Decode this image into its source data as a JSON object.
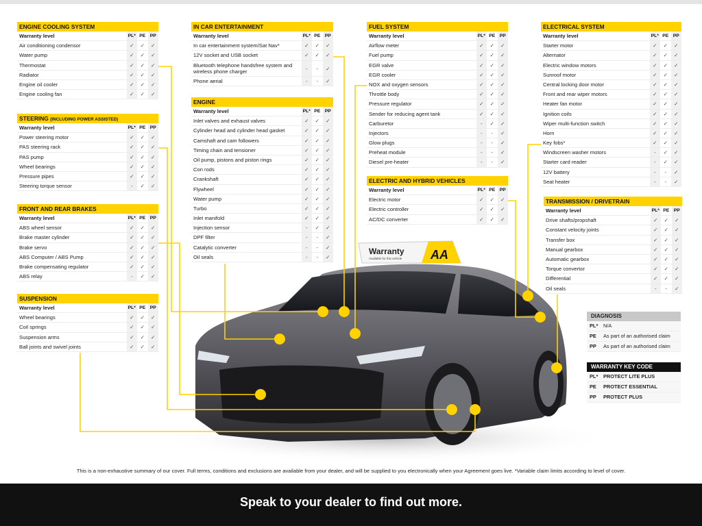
{
  "colors": {
    "accent": "#ffd200",
    "band": "#111111",
    "diagnosis_header": "#c8c8c8",
    "keycode_header": "#111111"
  },
  "columns": {
    "label": "Warranty level",
    "pl": "PL*",
    "pe": "PE",
    "pp": "PP"
  },
  "tables": [
    {
      "title": "ENGINE COOLING SYSTEM",
      "rows": [
        [
          "Air conditioning condensor",
          "✓",
          "✓",
          "✓"
        ],
        [
          "Water pump",
          "✓",
          "✓",
          "✓"
        ],
        [
          "Thermostat",
          "✓",
          "✓",
          "✓"
        ],
        [
          "Radiator",
          "✓",
          "✓",
          "✓"
        ],
        [
          "Engine oil cooler",
          "✓",
          "✓",
          "✓"
        ],
        [
          "Engine cooling fan",
          "✓",
          "✓",
          "✓"
        ]
      ]
    },
    {
      "title": "STEERING",
      "title_sub": "(INCLUDING POWER ASSISTED)",
      "rows": [
        [
          "Power steering motor",
          "✓",
          "✓",
          "✓"
        ],
        [
          "PAS steering rack",
          "✓",
          "✓",
          "✓"
        ],
        [
          "PAS pump",
          "✓",
          "✓",
          "✓"
        ],
        [
          "Wheel bearings",
          "✓",
          "✓",
          "✓"
        ],
        [
          "Pressure pipes",
          "✓",
          "✓",
          "✓"
        ],
        [
          "Steering torque sensor",
          "-",
          "✓",
          "✓"
        ]
      ]
    },
    {
      "title": "FRONT AND REAR BRAKES",
      "rows": [
        [
          "ABS wheel sensor",
          "✓",
          "✓",
          "✓"
        ],
        [
          "Brake master cylinder",
          "✓",
          "✓",
          "✓"
        ],
        [
          "Brake servo",
          "✓",
          "✓",
          "✓"
        ],
        [
          "ABS Computer / ABS Pump",
          "✓",
          "✓",
          "✓"
        ],
        [
          "Brake compensating regulator",
          "✓",
          "✓",
          "✓"
        ],
        [
          "ABS relay",
          "-",
          "✓",
          "✓"
        ]
      ]
    },
    {
      "title": "SUSPENSION",
      "rows": [
        [
          "Wheel bearings",
          "✓",
          "✓",
          "✓"
        ],
        [
          "Coil springs",
          "✓",
          "✓",
          "✓"
        ],
        [
          "Suspension arms",
          "✓",
          "✓",
          "✓"
        ],
        [
          "Ball joints and swivel joints",
          "✓",
          "✓",
          "✓"
        ]
      ]
    },
    {
      "title": "IN CAR ENTERTAINMENT",
      "rows": [
        [
          "In car entertainment system/Sat Nav*",
          "✓",
          "✓",
          "✓"
        ],
        [
          "12V socket and USB socket",
          "✓",
          "✓",
          "✓"
        ],
        [
          "Bluetooth telephone handsfree system and wireless phone charger",
          "-",
          "-",
          "✓"
        ],
        [
          "Phone aerial",
          "-",
          "-",
          "✓"
        ]
      ]
    },
    {
      "title": "ENGINE",
      "rows": [
        [
          "Inlet valves and exhaust valves",
          "✓",
          "✓",
          "✓"
        ],
        [
          "Cylinder head and cylinder head gasket",
          "✓",
          "✓",
          "✓"
        ],
        [
          "Camshaft and cam followers",
          "✓",
          "✓",
          "✓"
        ],
        [
          "Timing chain and tensioner",
          "✓",
          "✓",
          "✓"
        ],
        [
          "Oil pump, pistons and piston rings",
          "✓",
          "✓",
          "✓"
        ],
        [
          "Con rods",
          "✓",
          "✓",
          "✓"
        ],
        [
          "Crankshaft",
          "✓",
          "✓",
          "✓"
        ],
        [
          "Flywheel",
          "✓",
          "✓",
          "✓"
        ],
        [
          "Water pump",
          "✓",
          "✓",
          "✓"
        ],
        [
          "Turbo",
          "✓",
          "✓",
          "✓"
        ],
        [
          "Inlet manifold",
          "✓",
          "✓",
          "✓"
        ],
        [
          "Injection sensor",
          "-",
          "✓",
          "✓"
        ],
        [
          "DPF filter",
          "-",
          "-",
          "✓"
        ],
        [
          "Catalytic converter",
          "-",
          "-",
          "✓"
        ],
        [
          "Oil seals",
          "-",
          "-",
          "✓"
        ]
      ]
    },
    {
      "title": "FUEL SYSTEM",
      "rows": [
        [
          "Airflow meter",
          "✓",
          "✓",
          "✓"
        ],
        [
          "Fuel pump",
          "✓",
          "✓",
          "✓"
        ],
        [
          "EGR valve",
          "✓",
          "✓",
          "✓"
        ],
        [
          "EGR cooler",
          "✓",
          "✓",
          "✓"
        ],
        [
          "NOX and oxygen sensors",
          "✓",
          "✓",
          "✓"
        ],
        [
          "Throttle body",
          "✓",
          "✓",
          "✓"
        ],
        [
          "Pressure regulator",
          "✓",
          "✓",
          "✓"
        ],
        [
          "Sender for reducing agent tank",
          "✓",
          "✓",
          "✓"
        ],
        [
          "Carburetor",
          "-",
          "✓",
          "✓"
        ],
        [
          "Injectors",
          "-",
          "-",
          "✓"
        ],
        [
          "Glow plugs",
          "-",
          "-",
          "✓"
        ],
        [
          "Preheat module",
          "-",
          "-",
          "✓"
        ],
        [
          "Diesel pre-heater",
          "-",
          "-",
          "✓"
        ]
      ]
    },
    {
      "title": "ELECTRIC AND HYBRID VEHICLES",
      "rows": [
        [
          "Electric motor",
          "✓",
          "✓",
          "✓"
        ],
        [
          "Electric controller",
          "✓",
          "✓",
          "✓"
        ],
        [
          "AC/DC converter",
          "✓",
          "✓",
          "✓"
        ]
      ]
    },
    {
      "title": "ELECTRICAL SYSTEM",
      "rows": [
        [
          "Starter motor",
          "✓",
          "✓",
          "✓"
        ],
        [
          "Alternator",
          "✓",
          "✓",
          "✓"
        ],
        [
          "Electric window motors",
          "✓",
          "✓",
          "✓"
        ],
        [
          "Sunroof motor",
          "✓",
          "✓",
          "✓"
        ],
        [
          "Central locking door motor",
          "✓",
          "✓",
          "✓"
        ],
        [
          "Front and rear wiper motors",
          "✓",
          "✓",
          "✓"
        ],
        [
          "Heater fan motor",
          "✓",
          "✓",
          "✓"
        ],
        [
          "Ignition coils",
          "✓",
          "✓",
          "✓"
        ],
        [
          "Wiper multi-function switch",
          "✓",
          "✓",
          "✓"
        ],
        [
          "Horn",
          "✓",
          "✓",
          "✓"
        ],
        [
          "Key fobs*",
          "✓",
          "✓",
          "✓"
        ],
        [
          "Windscreen washer motors",
          "-",
          "✓",
          "✓"
        ],
        [
          "Starter card reader",
          "-",
          "✓",
          "✓"
        ],
        [
          "12V battery",
          "-",
          "-",
          "✓"
        ],
        [
          "Seat heater",
          "-",
          "-",
          "✓"
        ]
      ]
    },
    {
      "title": "TRANSMISSION / DRIVETRAIN",
      "rows": [
        [
          "Drive shafts/propshaft",
          "✓",
          "✓",
          "✓"
        ],
        [
          "Constant velocity joints",
          "✓",
          "✓",
          "✓"
        ],
        [
          "Transfer box",
          "✓",
          "✓",
          "✓"
        ],
        [
          "Manual gearbox",
          "✓",
          "✓",
          "✓"
        ],
        [
          "Automatic gearbox",
          "✓",
          "✓",
          "✓"
        ],
        [
          "Torque convertor",
          "✓",
          "✓",
          "✓"
        ],
        [
          "Differential",
          "✓",
          "✓",
          "✓"
        ],
        [
          "Oil seals",
          "-",
          "-",
          "✓"
        ]
      ]
    }
  ],
  "diagnosis": {
    "title": "DIAGNOSIS",
    "rows": [
      [
        "PL*",
        "N/A"
      ],
      [
        "PE",
        "As part of an authorised claim"
      ],
      [
        "PP",
        "As part of an authorised claim"
      ]
    ]
  },
  "key_code": {
    "title": "WARRANTY KEY CODE",
    "rows": [
      [
        "PL*",
        "PROTECT LITE PLUS"
      ],
      [
        "PE",
        "PROTECT ESSENTIAL"
      ],
      [
        "PP",
        "PROTECT PLUS"
      ]
    ]
  },
  "roof_sign": {
    "title": "Warranty",
    "subtitle": "Available for this vehicle",
    "logo": "AA"
  },
  "footnote": "This is a non-exhaustive summary of our cover. Full terms, conditions and exclusions are available from your dealer, and will be supplied to you electronically when your Agreement goes live. *Variable claim  limits according to level of cover.",
  "cta": "Speak to your dealer to find out more."
}
